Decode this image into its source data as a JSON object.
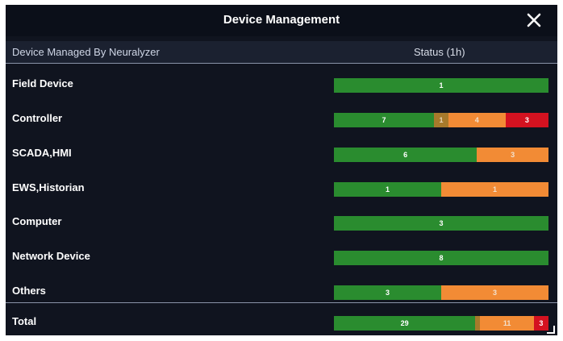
{
  "title": "Device Management",
  "header": {
    "device_col": "Device Managed By Neuralyzer",
    "status_col": "Status (1h)"
  },
  "colors": {
    "ok": "#2a8c2f",
    "minor": "#a77a2b",
    "warning": "#f28b35",
    "critical": "#d41220"
  },
  "rows": [
    {
      "label": "Field Device",
      "segments": [
        {
          "type": "ok",
          "value": 1,
          "text": "1"
        }
      ]
    },
    {
      "label": "Controller",
      "segments": [
        {
          "type": "ok",
          "value": 7,
          "text": "7"
        },
        {
          "type": "minor",
          "value": 1,
          "text": "1"
        },
        {
          "type": "warning",
          "value": 4,
          "text": "4"
        },
        {
          "type": "critical",
          "value": 3,
          "text": "3"
        }
      ]
    },
    {
      "label": "SCADA,HMI",
      "segments": [
        {
          "type": "ok",
          "value": 6,
          "text": "6"
        },
        {
          "type": "warning",
          "value": 3,
          "text": "3"
        }
      ]
    },
    {
      "label": "EWS,Historian",
      "segments": [
        {
          "type": "ok",
          "value": 1,
          "text": "1"
        },
        {
          "type": "warning",
          "value": 1,
          "text": "1"
        }
      ]
    },
    {
      "label": "Computer",
      "segments": [
        {
          "type": "ok",
          "value": 3,
          "text": "3"
        }
      ]
    },
    {
      "label": "Network Device",
      "segments": [
        {
          "type": "ok",
          "value": 8,
          "text": "8"
        }
      ]
    },
    {
      "label": "Others",
      "segments": [
        {
          "type": "ok",
          "value": 3,
          "text": "3"
        },
        {
          "type": "warning",
          "value": 3,
          "text": "3"
        }
      ]
    }
  ],
  "total": {
    "label": "Total",
    "segments": [
      {
        "type": "ok",
        "value": 29,
        "text": "29"
      },
      {
        "type": "minor",
        "value": 1,
        "text": ""
      },
      {
        "type": "warning",
        "value": 11,
        "text": "11"
      },
      {
        "type": "critical",
        "value": 3,
        "text": "3"
      }
    ]
  }
}
